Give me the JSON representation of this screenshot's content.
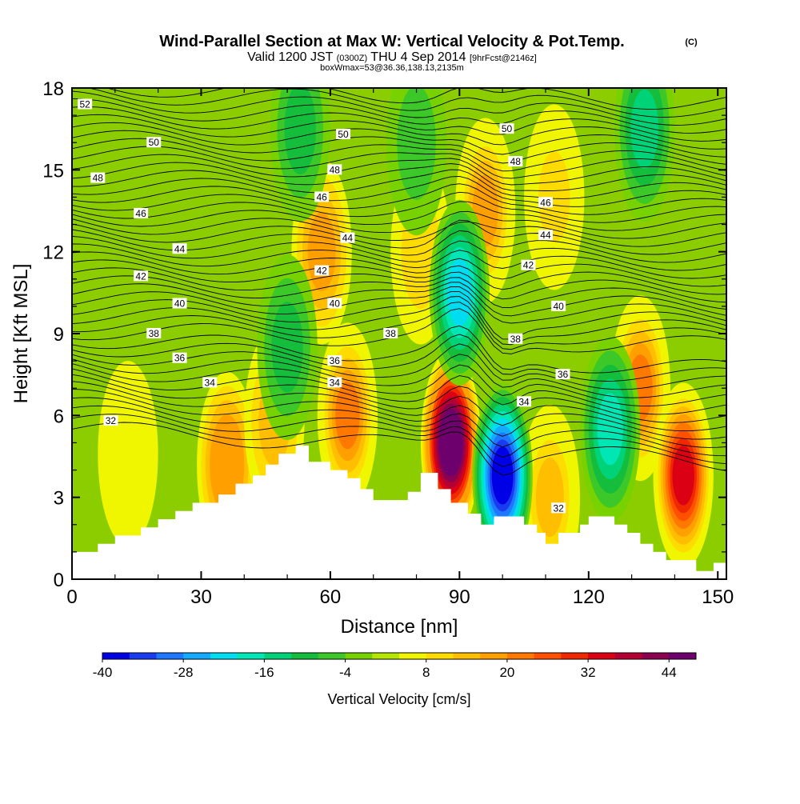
{
  "title": {
    "main": "Wind-Parallel Section at Max W: Vertical Velocity & Pot.Temp.",
    "copyright": "(C)",
    "valid_prefix": "Valid 1200 JST",
    "valid_zulu": "(0300Z)",
    "valid_date": "THU 4 Sep 2014",
    "forecast": "[9hrFcst@2146z]",
    "box": "boxWmax=53@36.36,138.13,2135m"
  },
  "chart_data": {
    "type": "heatmap",
    "xlabel": "Distance [nm]",
    "ylabel": "Height [Kft MSL]",
    "xlim": [
      0,
      152
    ],
    "ylim": [
      0,
      18
    ],
    "xticks": [
      0,
      30,
      60,
      90,
      120,
      150
    ],
    "yticks": [
      0,
      3,
      6,
      9,
      12,
      15,
      18
    ],
    "colorbar": {
      "label": "Vertical Velocity [cm/s]",
      "ticks": [
        -40,
        -28,
        -16,
        -4,
        8,
        20,
        32,
        44
      ],
      "min": -40,
      "max": 48,
      "colors": [
        "#0000e6",
        "#1a3cf0",
        "#1e78ff",
        "#14aaff",
        "#00dcf0",
        "#00e6b4",
        "#00d278",
        "#14be3c",
        "#3cc828",
        "#78d200",
        "#b4e600",
        "#f0f500",
        "#ffdc00",
        "#ffbe00",
        "#ffa000",
        "#ff7800",
        "#ff5000",
        "#f02800",
        "#dc0014",
        "#b40032",
        "#8c0050",
        "#6e006e"
      ]
    },
    "terrain_kft": [
      [
        0,
        1.0
      ],
      [
        6,
        1.0
      ],
      [
        6,
        1.3
      ],
      [
        10,
        1.3
      ],
      [
        10,
        1.6
      ],
      [
        16,
        1.6
      ],
      [
        16,
        1.9
      ],
      [
        20,
        1.9
      ],
      [
        20,
        2.2
      ],
      [
        24,
        2.2
      ],
      [
        24,
        2.5
      ],
      [
        28,
        2.5
      ],
      [
        28,
        2.8
      ],
      [
        34,
        2.8
      ],
      [
        34,
        3.1
      ],
      [
        38,
        3.1
      ],
      [
        38,
        3.5
      ],
      [
        42,
        3.5
      ],
      [
        42,
        3.8
      ],
      [
        45,
        3.8
      ],
      [
        45,
        4.2
      ],
      [
        48,
        4.2
      ],
      [
        48,
        4.6
      ],
      [
        52,
        4.6
      ],
      [
        52,
        4.9
      ],
      [
        55,
        4.9
      ],
      [
        55,
        4.3
      ],
      [
        60,
        4.3
      ],
      [
        60,
        4.0
      ],
      [
        64,
        4.0
      ],
      [
        64,
        3.7
      ],
      [
        67,
        3.7
      ],
      [
        67,
        3.3
      ],
      [
        70,
        3.3
      ],
      [
        70,
        2.9
      ],
      [
        78,
        2.9
      ],
      [
        78,
        3.2
      ],
      [
        81,
        3.2
      ],
      [
        81,
        3.9
      ],
      [
        85,
        3.9
      ],
      [
        85,
        3.3
      ],
      [
        88,
        3.3
      ],
      [
        88,
        2.8
      ],
      [
        92,
        2.8
      ],
      [
        92,
        2.4
      ],
      [
        95,
        2.4
      ],
      [
        95,
        2.0
      ],
      [
        98,
        2.0
      ],
      [
        98,
        2.3
      ],
      [
        105,
        2.3
      ],
      [
        105,
        2.0
      ],
      [
        108,
        2.0
      ],
      [
        108,
        1.7
      ],
      [
        110,
        1.7
      ],
      [
        110,
        1.3
      ],
      [
        113,
        1.3
      ],
      [
        113,
        1.7
      ],
      [
        118,
        1.7
      ],
      [
        118,
        2.0
      ],
      [
        120,
        2.0
      ],
      [
        120,
        2.3
      ],
      [
        126,
        2.3
      ],
      [
        126,
        2.0
      ],
      [
        129,
        2.0
      ],
      [
        129,
        1.7
      ],
      [
        132,
        1.7
      ],
      [
        132,
        1.3
      ],
      [
        135,
        1.3
      ],
      [
        135,
        1.0
      ],
      [
        138,
        1.0
      ],
      [
        138,
        0.7
      ],
      [
        145,
        0.7
      ],
      [
        145,
        0.3
      ],
      [
        149,
        0.3
      ],
      [
        149,
        0.6
      ],
      [
        152,
        0.6
      ],
      [
        152,
        0
      ]
    ],
    "updraft_cores": [
      {
        "x": 13,
        "y": 4.6,
        "w": 7
      },
      {
        "x": 36,
        "y": 4.2,
        "w": 20
      },
      {
        "x": 47,
        "y": 5.8,
        "w": 12
      },
      {
        "x": 58,
        "y": 12.0,
        "w": 16
      },
      {
        "x": 64,
        "y": 6.0,
        "w": 22
      },
      {
        "x": 81,
        "y": 12.0,
        "w": 8
      },
      {
        "x": 88,
        "y": 5.0,
        "w": 48
      },
      {
        "x": 96,
        "y": 13.5,
        "w": 18
      },
      {
        "x": 111,
        "y": 3.0,
        "w": 15
      },
      {
        "x": 112,
        "y": 14.0,
        "w": 10
      },
      {
        "x": 132,
        "y": 7.0,
        "w": 22
      },
      {
        "x": 142,
        "y": 3.8,
        "w": 34
      }
    ],
    "downdraft_cores": [
      {
        "x": 50,
        "y": 8.5,
        "w": -12
      },
      {
        "x": 53,
        "y": 16.5,
        "w": -10
      },
      {
        "x": 80,
        "y": 16.0,
        "w": -8
      },
      {
        "x": 90,
        "y": 10.5,
        "w": -24
      },
      {
        "x": 100,
        "y": 3.8,
        "w": -40
      },
      {
        "x": 125,
        "y": 5.5,
        "w": -18
      },
      {
        "x": 133,
        "y": 16.5,
        "w": -16
      }
    ],
    "theta_contours": {
      "base_values": [
        32,
        34,
        36,
        38,
        40,
        42,
        44,
        46,
        48,
        50,
        52
      ],
      "labels": [
        {
          "text": "52",
          "x": 3,
          "y": 17.4
        },
        {
          "text": "50",
          "x": 19,
          "y": 16.0
        },
        {
          "text": "48",
          "x": 6,
          "y": 14.7
        },
        {
          "text": "46",
          "x": 16,
          "y": 13.4
        },
        {
          "text": "44",
          "x": 25,
          "y": 12.1
        },
        {
          "text": "42",
          "x": 16,
          "y": 11.1
        },
        {
          "text": "40",
          "x": 25,
          "y": 10.1
        },
        {
          "text": "38",
          "x": 19,
          "y": 9.0
        },
        {
          "text": "36",
          "x": 25,
          "y": 8.1
        },
        {
          "text": "34",
          "x": 32,
          "y": 7.2
        },
        {
          "text": "32",
          "x": 9,
          "y": 5.8
        },
        {
          "text": "50",
          "x": 63,
          "y": 16.3
        },
        {
          "text": "48",
          "x": 61,
          "y": 15.0
        },
        {
          "text": "46",
          "x": 58,
          "y": 14.0
        },
        {
          "text": "44",
          "x": 64,
          "y": 12.5
        },
        {
          "text": "42",
          "x": 58,
          "y": 11.3
        },
        {
          "text": "40",
          "x": 61,
          "y": 10.1
        },
        {
          "text": "38",
          "x": 74,
          "y": 9.0
        },
        {
          "text": "36",
          "x": 61,
          "y": 8.0
        },
        {
          "text": "34",
          "x": 61,
          "y": 7.2
        },
        {
          "text": "50",
          "x": 101,
          "y": 16.5
        },
        {
          "text": "48",
          "x": 103,
          "y": 15.3
        },
        {
          "text": "46",
          "x": 110,
          "y": 13.8
        },
        {
          "text": "44",
          "x": 110,
          "y": 12.6
        },
        {
          "text": "42",
          "x": 106,
          "y": 11.5
        },
        {
          "text": "40",
          "x": 113,
          "y": 10.0
        },
        {
          "text": "38",
          "x": 103,
          "y": 8.8
        },
        {
          "text": "36",
          "x": 114,
          "y": 7.5
        },
        {
          "text": "34",
          "x": 105,
          "y": 6.5
        },
        {
          "text": "32",
          "x": 113,
          "y": 2.6
        }
      ]
    }
  }
}
